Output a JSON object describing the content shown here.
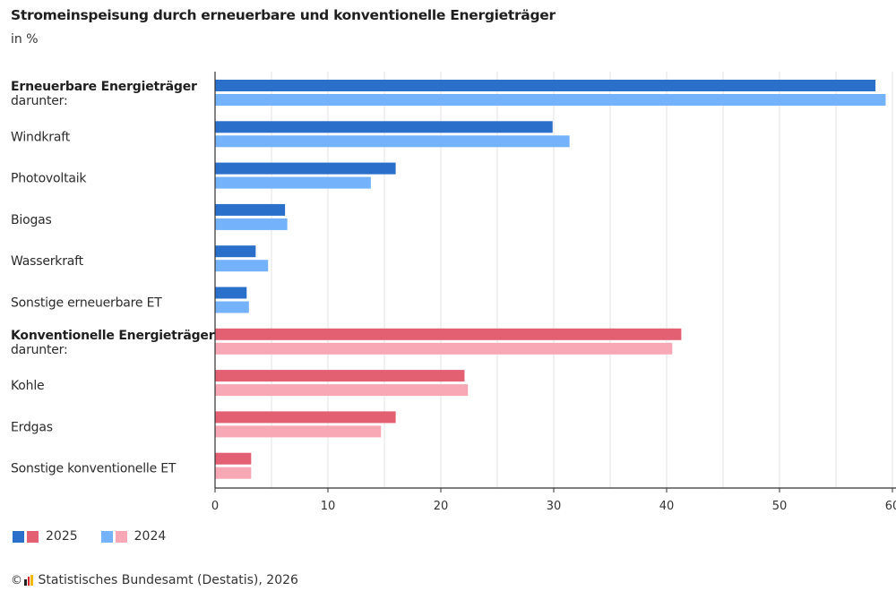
{
  "header": {
    "title": "Stromeinspeisung durch erneuerbare und konventionelle Energieträger",
    "subtitle": "in %"
  },
  "colors": {
    "renewable_2025": "#2a6fc9",
    "renewable_2024": "#74b2fb",
    "conventional_2025": "#e35f72",
    "conventional_2024": "#f8a8b4",
    "grid": "#e3e3e3",
    "axis": "#333333"
  },
  "legend": {
    "items": [
      {
        "label": "2025",
        "colors": [
          "#2a6fc9",
          "#e35f72"
        ]
      },
      {
        "label": "2024",
        "colors": [
          "#74b2fb",
          "#f8a8b4"
        ]
      }
    ]
  },
  "source": {
    "copyright_symbol": "©",
    "logo_icon": "destatis-logo-icon",
    "text": "Statistisches Bundesamt (Destatis), 2026"
  },
  "chart_data": {
    "type": "bar",
    "orientation": "horizontal",
    "title": "Stromeinspeisung durch erneuerbare und konventionelle Energieträger",
    "subtitle": "in %",
    "xlabel": "",
    "ylabel": "",
    "xlim": [
      0,
      60
    ],
    "xticks": [
      0,
      10,
      20,
      30,
      40,
      50,
      60
    ],
    "xtick_labels": [
      "0",
      "10",
      "20",
      "30",
      "40",
      "50",
      "60"
    ],
    "grid": "vertical, every 5",
    "legend_position": "bottom-left",
    "categories": [
      {
        "label": "Erneuerbare Energieträger",
        "sublabel": "darunter:",
        "bold": true,
        "group": "renewable"
      },
      {
        "label": "Windkraft",
        "bold": false,
        "group": "renewable"
      },
      {
        "label": "Photovoltaik",
        "bold": false,
        "group": "renewable"
      },
      {
        "label": "Biogas",
        "bold": false,
        "group": "renewable"
      },
      {
        "label": "Wasserkraft",
        "bold": false,
        "group": "renewable"
      },
      {
        "label": "Sonstige erneuerbare ET",
        "bold": false,
        "group": "renewable"
      },
      {
        "label": "Konventionelle Energieträger",
        "sublabel": "darunter:",
        "bold": true,
        "group": "conventional"
      },
      {
        "label": "Kohle",
        "bold": false,
        "group": "conventional"
      },
      {
        "label": "Erdgas",
        "bold": false,
        "group": "conventional"
      },
      {
        "label": "Sonstige konventionelle ET",
        "bold": false,
        "group": "conventional"
      }
    ],
    "series": [
      {
        "name": "2025",
        "values": [
          58.5,
          29.9,
          16.0,
          6.2,
          3.6,
          2.8,
          41.3,
          22.1,
          16.0,
          3.2
        ]
      },
      {
        "name": "2024",
        "values": [
          59.4,
          31.4,
          13.8,
          6.4,
          4.7,
          3.0,
          40.5,
          22.4,
          14.7,
          3.2
        ]
      }
    ]
  }
}
